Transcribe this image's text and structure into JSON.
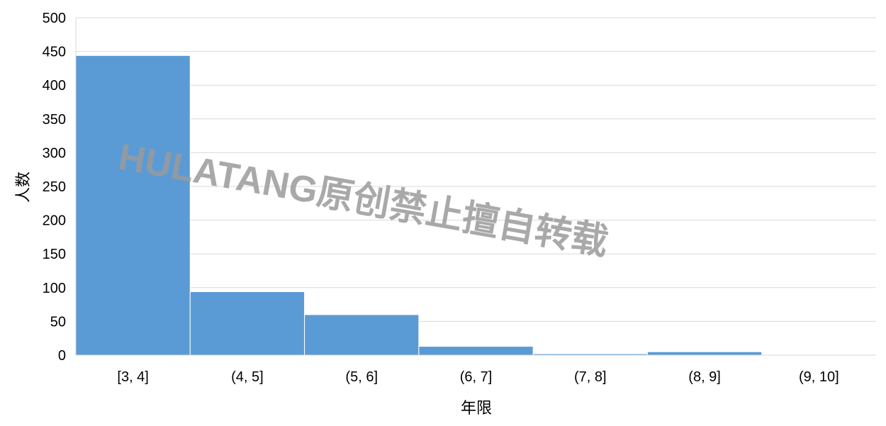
{
  "chart_data": {
    "type": "bar",
    "title": "",
    "xlabel": "年限",
    "ylabel": "人数",
    "categories": [
      "[3, 4]",
      "(4, 5]",
      "(5, 6]",
      "(6, 7]",
      "(7, 8]",
      "(8, 9]",
      "(9, 10]"
    ],
    "values": [
      444,
      94,
      60,
      13,
      2,
      5,
      0
    ],
    "ylim": [
      0,
      500
    ],
    "yticks": [
      0,
      50,
      100,
      150,
      200,
      250,
      300,
      350,
      400,
      450,
      500
    ],
    "grid": true,
    "legend": "none",
    "bar_color": "#5b9bd5",
    "grid_color": "#d9d9d9"
  },
  "watermark": "HULATANG原创禁止擅自转载"
}
